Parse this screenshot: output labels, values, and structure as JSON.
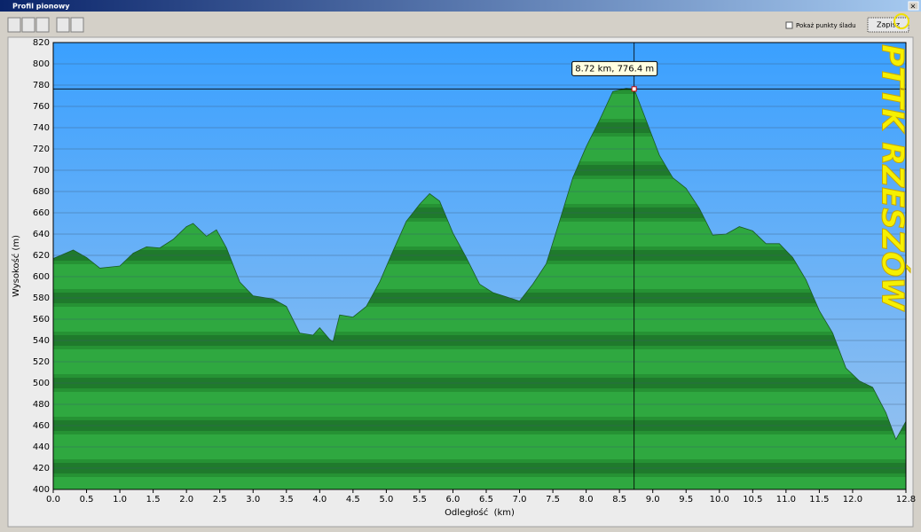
{
  "window": {
    "title": "Profil pionowy",
    "checkbox": "Pokaż punkty śladu",
    "button": "Zapisz"
  },
  "chart_data": {
    "type": "area",
    "xlabel": "Odległość  (km)",
    "ylabel": "Wysokość (m)",
    "watermark": "PTTK RZESZÓW",
    "color": "#2a9a3a",
    "grid": true,
    "xlim": [
      0,
      12.8
    ],
    "ylim": [
      400,
      820
    ],
    "xticks": [
      {
        "value": 0,
        "label": "0.0"
      },
      0.5,
      {
        "value": 1,
        "label": "1.0"
      },
      1.5,
      {
        "value": 2,
        "label": "2.0"
      },
      2.5,
      {
        "value": 3,
        "label": "3.0"
      },
      3.5,
      {
        "value": 4,
        "label": "4.0"
      },
      4.5,
      {
        "value": 5,
        "label": "5.0"
      },
      5.5,
      {
        "value": 6,
        "label": "6.0"
      },
      6.5,
      {
        "value": 7,
        "label": "7.0"
      },
      7.5,
      {
        "value": 8,
        "label": "8.0"
      },
      8.5,
      {
        "value": 9,
        "label": "9.0"
      },
      9.5,
      {
        "value": 10,
        "label": "10.0"
      },
      10.5,
      {
        "value": 11,
        "label": "11.0"
      },
      11.5,
      {
        "value": 12,
        "label": "12.0"
      },
      12.8
    ],
    "yticks": [
      400,
      420,
      440,
      460,
      480,
      500,
      520,
      540,
      560,
      580,
      600,
      620,
      640,
      660,
      680,
      700,
      720,
      740,
      760,
      780,
      800,
      820
    ],
    "x": [
      0,
      0.3,
      0.5,
      0.7,
      1.0,
      1.2,
      1.4,
      1.6,
      1.8,
      2.0,
      2.1,
      2.3,
      2.45,
      2.6,
      2.8,
      3.0,
      3.3,
      3.5,
      3.7,
      3.9,
      4.0,
      4.15,
      4.2,
      4.3,
      4.5,
      4.7,
      4.9,
      5.1,
      5.3,
      5.5,
      5.65,
      5.8,
      6.0,
      6.2,
      6.4,
      6.6,
      6.8,
      7.0,
      7.2,
      7.4,
      7.6,
      7.8,
      8.0,
      8.2,
      8.4,
      8.6,
      8.72,
      8.9,
      9.1,
      9.3,
      9.5,
      9.7,
      9.9,
      10.1,
      10.3,
      10.5,
      10.7,
      10.9,
      11.1,
      11.3,
      11.5,
      11.7,
      11.9,
      12.1,
      12.3,
      12.5,
      12.65,
      12.8
    ],
    "values": [
      617,
      625,
      618,
      608,
      610,
      622,
      628,
      627,
      635,
      647,
      650,
      638,
      644,
      627,
      595,
      582,
      579,
      572,
      547,
      545,
      552,
      541,
      539,
      564,
      562,
      572,
      595,
      624,
      652,
      668,
      678,
      671,
      641,
      618,
      593,
      585,
      581,
      577,
      593,
      612,
      652,
      693,
      722,
      747,
      774,
      777,
      776.4,
      747,
      714,
      693,
      683,
      664,
      639,
      640,
      647,
      643,
      631,
      631,
      618,
      597,
      568,
      547,
      514,
      502,
      496,
      472,
      447,
      464
    ],
    "cursor": {
      "x": 8.72,
      "y": 776.4,
      "label": "8.72 km, 776.4 m"
    }
  }
}
